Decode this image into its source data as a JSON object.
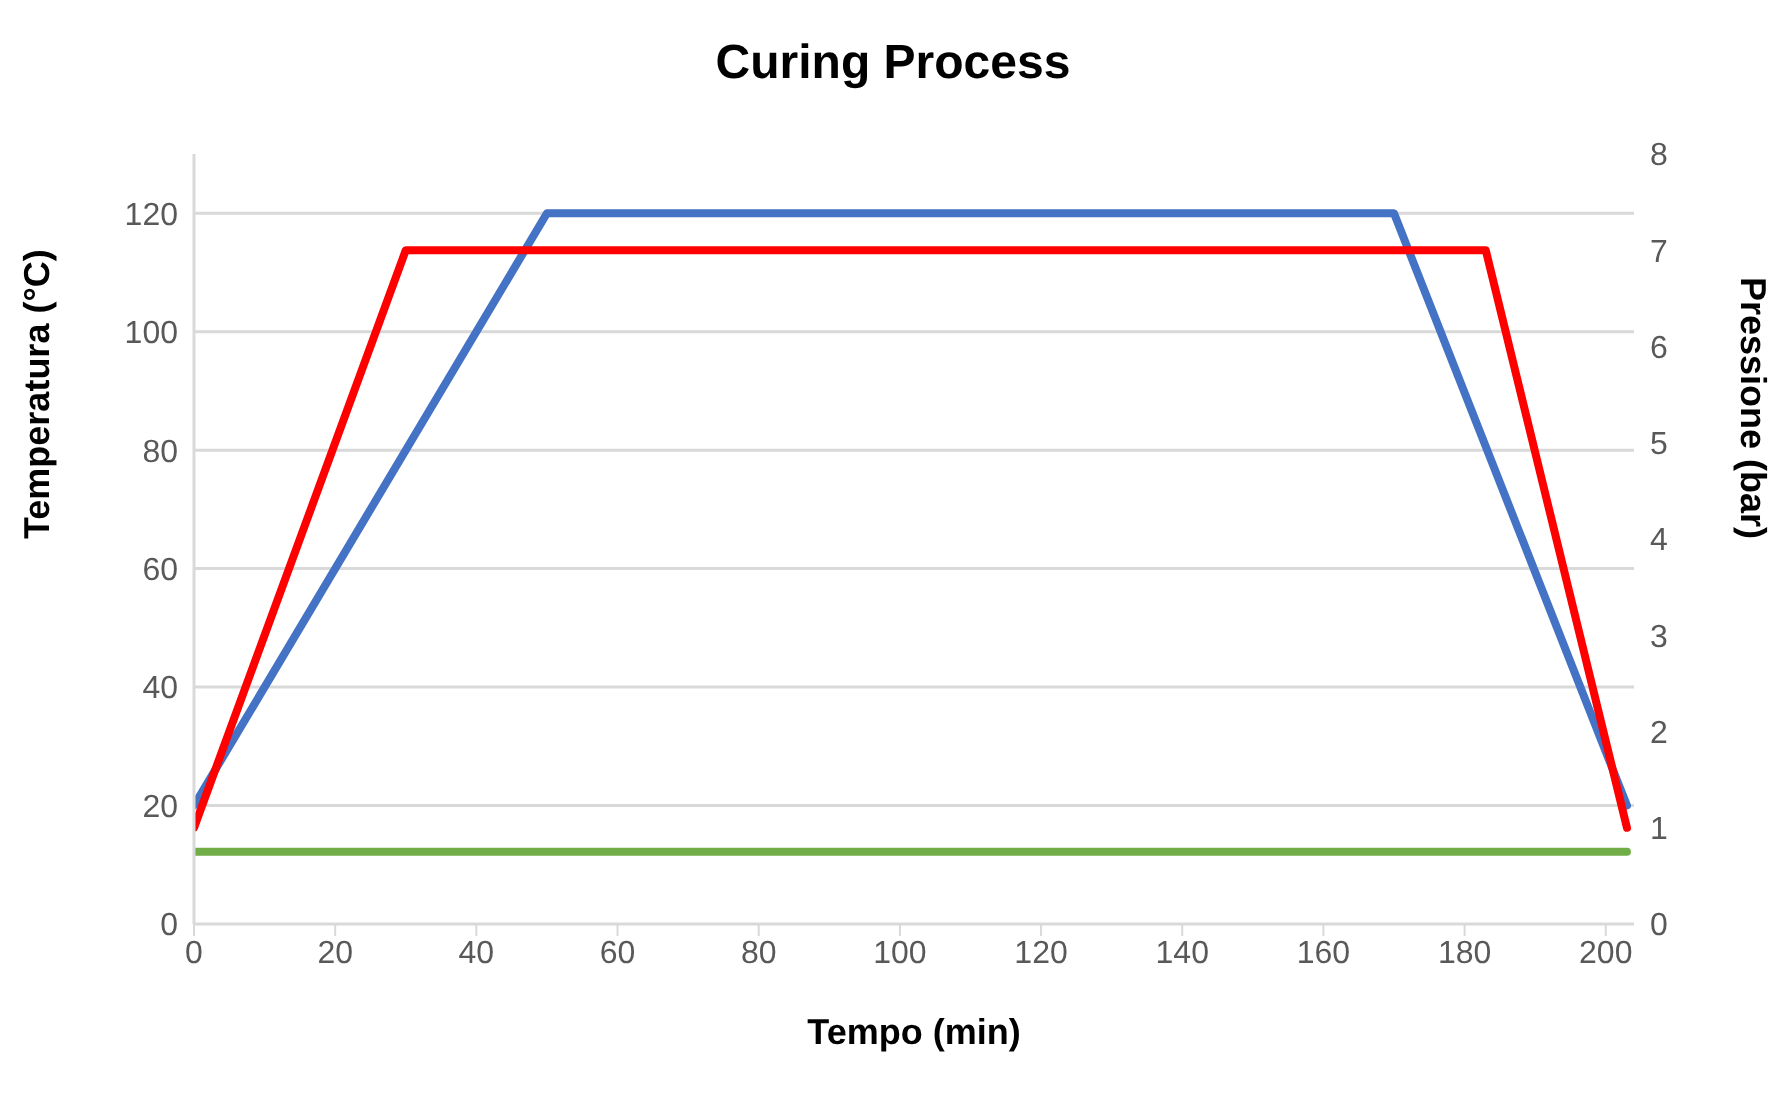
{
  "chart_data": {
    "type": "line",
    "title": "Curing Process",
    "xlabel": "Tempo (min)",
    "ylabel": "Temperatura (°C)",
    "y2label": "Pressione (bar)",
    "xlim": [
      0,
      204
    ],
    "xticks": [
      0,
      20,
      40,
      60,
      80,
      100,
      120,
      140,
      160,
      180,
      200
    ],
    "ylim": [
      0,
      130
    ],
    "yticks": [
      0,
      20,
      40,
      60,
      80,
      100,
      120
    ],
    "y2lim": [
      0,
      8
    ],
    "y2ticks": [
      0,
      1,
      2,
      3,
      4,
      5,
      6,
      7,
      8
    ],
    "grid": "y",
    "marker": "none",
    "line_style": "solid",
    "series": [
      {
        "color": "#4472c4",
        "x": [
          0,
          50,
          170,
          203
        ],
        "values": [
          20,
          120,
          120,
          20
        ]
      },
      {
        "color": "#ff0000",
        "axis": "y2",
        "x": [
          0,
          30,
          183,
          203
        ],
        "values": [
          1,
          7,
          7,
          1
        ]
      },
      {
        "color": "#70ad47",
        "axis": "y2",
        "x": [
          0,
          203
        ],
        "values": [
          0.75,
          0.75
        ]
      }
    ]
  }
}
